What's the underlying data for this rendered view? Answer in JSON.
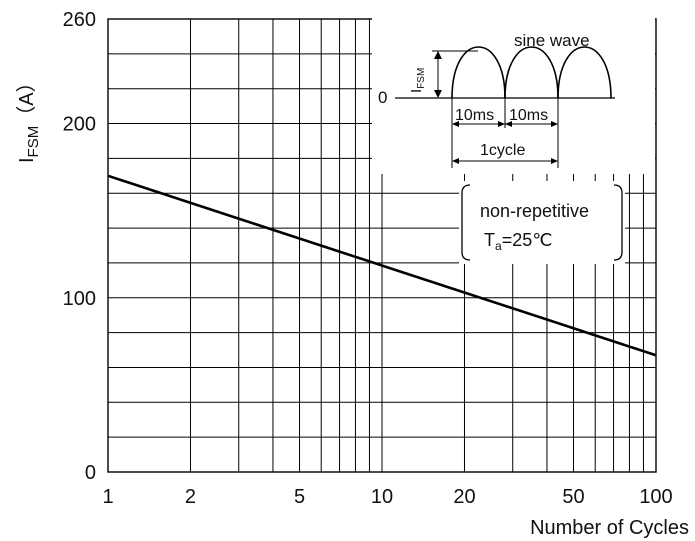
{
  "chart_data": {
    "type": "line",
    "x_scale": "log",
    "xlim": [
      1,
      100
    ],
    "ylim": [
      0,
      260
    ],
    "x_ticks": [
      1,
      2,
      5,
      10,
      20,
      50,
      100
    ],
    "x_tick_labels": [
      "1",
      "2",
      "5",
      "10",
      "20",
      "50",
      "100"
    ],
    "y_ticks": [
      0,
      100,
      200,
      260
    ],
    "y_tick_labels": [
      "0",
      "100",
      "200",
      "260"
    ],
    "grid": true,
    "xlabel": "Number of Cycles",
    "ylabel_main": "I",
    "ylabel_sub": "FSM",
    "ylabel_unit": "（A）",
    "series": [
      {
        "x": [
          1,
          100
        ],
        "y": [
          170,
          67
        ]
      }
    ],
    "inset": {
      "title": "sine wave",
      "zero_label": "0",
      "amp_main": "I",
      "amp_sub": "FSM",
      "half_period_label_1": "10ms",
      "half_period_label_2": "10ms",
      "cycle_label": "1cycle"
    },
    "annotation": {
      "line1": "non-repetitive",
      "line2_main": "T",
      "line2_sub": "a",
      "line2_rest": "=25℃"
    }
  }
}
